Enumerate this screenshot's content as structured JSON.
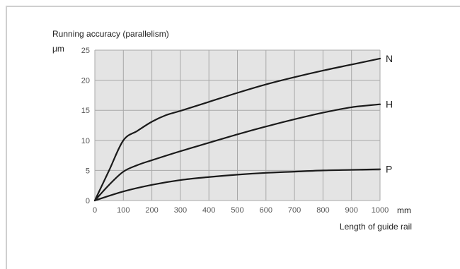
{
  "chart_data": {
    "type": "line",
    "title": "Running accuracy (parallelism)",
    "ylabel": "μm",
    "xunit": "mm",
    "xlabel": "Length of guide rail",
    "xlim": [
      0,
      1000
    ],
    "ylim": [
      0,
      25
    ],
    "xticks": [
      0,
      100,
      200,
      300,
      400,
      500,
      600,
      700,
      800,
      900,
      1000
    ],
    "yticks": [
      0,
      5,
      10,
      15,
      20,
      25
    ],
    "grid": true,
    "plot_background": "#e4e4e4",
    "line_color": "#1a1a1a",
    "series": [
      {
        "name": "N",
        "x": [
          0,
          50,
          100,
          150,
          200,
          250,
          300,
          400,
          500,
          600,
          700,
          800,
          900,
          1000
        ],
        "y": [
          0,
          5,
          10,
          11.6,
          13.1,
          14.2,
          14.9,
          16.4,
          17.9,
          19.3,
          20.5,
          21.6,
          22.6,
          23.6
        ]
      },
      {
        "name": "H",
        "x": [
          0,
          50,
          100,
          150,
          200,
          300,
          400,
          500,
          600,
          700,
          800,
          900,
          1000
        ],
        "y": [
          0,
          2.6,
          4.8,
          5.9,
          6.7,
          8.2,
          9.6,
          11.0,
          12.3,
          13.5,
          14.6,
          15.5,
          16.0
        ]
      },
      {
        "name": "P",
        "x": [
          0,
          100,
          200,
          300,
          400,
          500,
          600,
          700,
          800,
          900,
          1000
        ],
        "y": [
          0,
          1.5,
          2.6,
          3.4,
          3.9,
          4.3,
          4.6,
          4.8,
          5.0,
          5.1,
          5.2
        ]
      }
    ]
  }
}
